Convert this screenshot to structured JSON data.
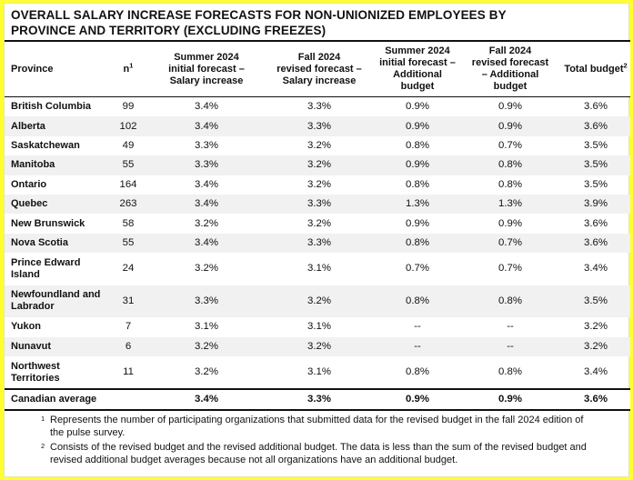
{
  "title_line1": "OVERALL SALARY INCREASE FORECASTS FOR NON-UNIONIZED EMPLOYEES BY",
  "title_line2": "PROVINCE AND TERRITORY (EXCLUDING FREEZES)",
  "headers": {
    "province": "Province",
    "n": "n",
    "n_sup": "1",
    "summer_salary_l1": "Summer 2024",
    "summer_salary_l2": "initial forecast –",
    "summer_salary_l3": "Salary increase",
    "fall_salary_l1": "Fall 2024",
    "fall_salary_l2": "revised forecast –",
    "fall_salary_l3": "Salary increase",
    "summer_add_l1": "Summer 2024",
    "summer_add_l2": "initial forecast –",
    "summer_add_l3": "Additional",
    "summer_add_l4": "budget",
    "fall_add_l1": "Fall 2024",
    "fall_add_l2": "revised forecast",
    "fall_add_l3": "– Additional",
    "fall_add_l4": "budget",
    "total": "Total budget",
    "total_sup": "2"
  },
  "rows": [
    {
      "province_l1": "British Columbia",
      "province_l2": "",
      "n": "99",
      "summer_salary": "3.4%",
      "fall_salary": "3.3%",
      "summer_add": "0.9%",
      "fall_add": "0.9%",
      "total": "3.6%"
    },
    {
      "province_l1": "Alberta",
      "province_l2": "",
      "n": "102",
      "summer_salary": "3.4%",
      "fall_salary": "3.3%",
      "summer_add": "0.9%",
      "fall_add": "0.9%",
      "total": "3.6%"
    },
    {
      "province_l1": "Saskatchewan",
      "province_l2": "",
      "n": "49",
      "summer_salary": "3.3%",
      "fall_salary": "3.2%",
      "summer_add": "0.8%",
      "fall_add": "0.7%",
      "total": "3.5%"
    },
    {
      "province_l1": "Manitoba",
      "province_l2": "",
      "n": "55",
      "summer_salary": "3.3%",
      "fall_salary": "3.2%",
      "summer_add": "0.9%",
      "fall_add": "0.8%",
      "total": "3.5%"
    },
    {
      "province_l1": "Ontario",
      "province_l2": "",
      "n": "164",
      "summer_salary": "3.4%",
      "fall_salary": "3.2%",
      "summer_add": "0.8%",
      "fall_add": "0.8%",
      "total": "3.5%"
    },
    {
      "province_l1": "Quebec",
      "province_l2": "",
      "n": "263",
      "summer_salary": "3.4%",
      "fall_salary": "3.3%",
      "summer_add": "1.3%",
      "fall_add": "1.3%",
      "total": "3.9%"
    },
    {
      "province_l1": "New Brunswick",
      "province_l2": "",
      "n": "58",
      "summer_salary": "3.2%",
      "fall_salary": "3.2%",
      "summer_add": "0.9%",
      "fall_add": "0.9%",
      "total": "3.6%"
    },
    {
      "province_l1": "Nova Scotia",
      "province_l2": "",
      "n": "55",
      "summer_salary": "3.4%",
      "fall_salary": "3.3%",
      "summer_add": "0.8%",
      "fall_add": "0.7%",
      "total": "3.6%"
    },
    {
      "province_l1": "Prince Edward",
      "province_l2": "Island",
      "n": "24",
      "summer_salary": "3.2%",
      "fall_salary": "3.1%",
      "summer_add": "0.7%",
      "fall_add": "0.7%",
      "total": "3.4%"
    },
    {
      "province_l1": "Newfoundland and",
      "province_l2": "Labrador",
      "n": "31",
      "summer_salary": "3.3%",
      "fall_salary": "3.2%",
      "summer_add": "0.8%",
      "fall_add": "0.8%",
      "total": "3.5%"
    },
    {
      "province_l1": "Yukon",
      "province_l2": "",
      "n": "7",
      "summer_salary": "3.1%",
      "fall_salary": "3.1%",
      "summer_add": "--",
      "fall_add": "--",
      "total": "3.2%"
    },
    {
      "province_l1": "Nunavut",
      "province_l2": "",
      "n": "6",
      "summer_salary": "3.2%",
      "fall_salary": "3.2%",
      "summer_add": "--",
      "fall_add": "--",
      "total": "3.2%"
    },
    {
      "province_l1": "Northwest",
      "province_l2": "Territories",
      "n": "11",
      "summer_salary": "3.2%",
      "fall_salary": "3.1%",
      "summer_add": "0.8%",
      "fall_add": "0.8%",
      "total": "3.4%"
    }
  ],
  "average": {
    "province": "Canadian average",
    "n": "",
    "summer_salary": "3.4%",
    "fall_salary": "3.3%",
    "summer_add": "0.9%",
    "fall_add": "0.9%",
    "total": "3.6%"
  },
  "footnotes": [
    {
      "marker": "1",
      "text": "Represents the number of participating organizations that submitted data for the revised budget in the fall 2024 edition of the pulse survey."
    },
    {
      "marker": "2",
      "text": "Consists of the revised budget and the revised additional budget. The data is less than the sum of the revised budget and revised additional budget averages because not all organizations have an additional budget."
    }
  ]
}
